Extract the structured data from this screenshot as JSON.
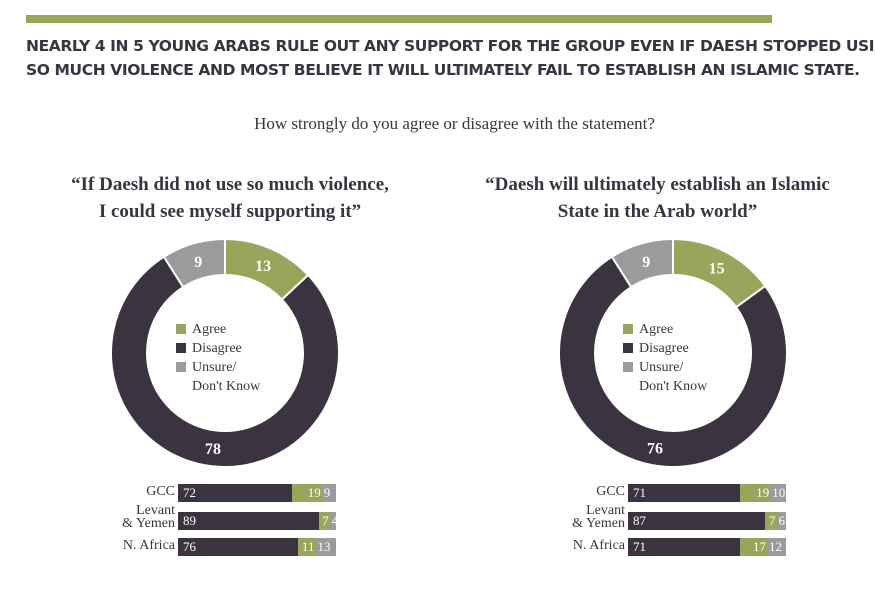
{
  "headline": {
    "line1": "NEARLY 4 IN 5 YOUNG ARABS RULE OUT ANY SUPPORT FOR THE GROUP EVEN IF DAESH STOPPED USING",
    "line2": "SO MUCH VIOLENCE AND MOST BELIEVE IT WILL ULTIMATELY FAIL TO ESTABLISH AN ISLAMIC STATE."
  },
  "question": "How strongly do you agree or disagree with the statement?",
  "colors": {
    "agree": "#9aa55c",
    "disagree": "#3b3440",
    "unsure": "#9b9b9d",
    "topbar": "#9aa55c"
  },
  "legend": {
    "agree": "Agree",
    "disagree": "Disagree",
    "unsure_line1": "Unsure/",
    "unsure_line2": "Don't Know"
  },
  "chart_data": [
    {
      "type": "pie",
      "title_line1": "“If Daesh did not use so much violence,",
      "title_line2": "I could see myself supporting it”",
      "slices": [
        {
          "name": "Agree",
          "value": 13
        },
        {
          "name": "Disagree",
          "value": 78
        },
        {
          "name": "Unsure/Don't Know",
          "value": 9
        }
      ],
      "bars": {
        "type": "bar",
        "stacked": true,
        "rows": [
          {
            "label_line1": "GCC",
            "label_line2": "",
            "disagree": 72,
            "agree": 19,
            "unsure": 9
          },
          {
            "label_line1": "Levant",
            "label_line2": "& Yemen",
            "disagree": 89,
            "agree": 7,
            "unsure": 4
          },
          {
            "label_line1": "N. Africa",
            "label_line2": "",
            "disagree": 76,
            "agree": 11,
            "unsure": 13
          }
        ]
      }
    },
    {
      "type": "pie",
      "title_line1": "“Daesh will ultimately establish an Islamic",
      "title_line2": "State in the Arab world”",
      "slices": [
        {
          "name": "Agree",
          "value": 15
        },
        {
          "name": "Disagree",
          "value": 76
        },
        {
          "name": "Unsure/Don't Know",
          "value": 9
        }
      ],
      "bars": {
        "type": "bar",
        "stacked": true,
        "rows": [
          {
            "label_line1": "GCC",
            "label_line2": "",
            "disagree": 71,
            "agree": 19,
            "unsure": 10
          },
          {
            "label_line1": "Levant",
            "label_line2": "& Yemen",
            "disagree": 87,
            "agree": 7,
            "unsure": 6
          },
          {
            "label_line1": "N. Africa",
            "label_line2": "",
            "disagree": 71,
            "agree": 17,
            "unsure": 12
          }
        ]
      }
    }
  ]
}
